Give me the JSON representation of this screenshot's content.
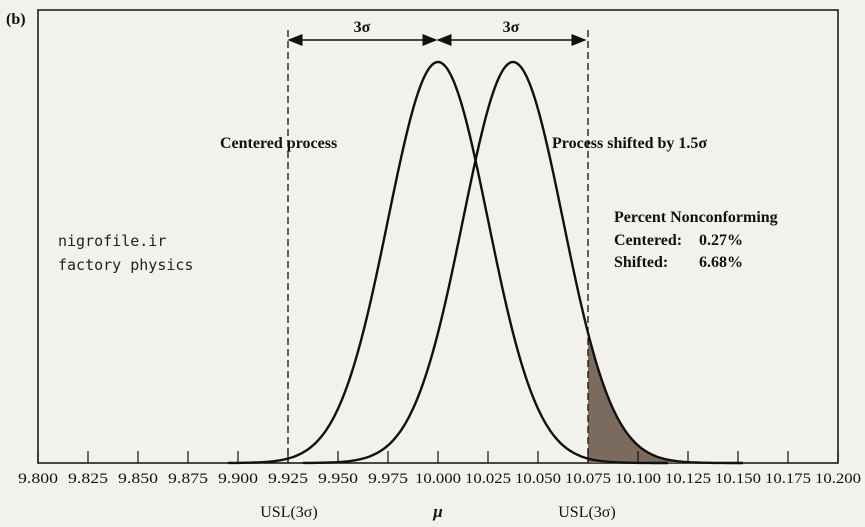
{
  "panel_label": "(b)",
  "watermark": [
    "nigrofile.ir",
    "factory physics"
  ],
  "chart_data": {
    "type": "line",
    "title": "",
    "xlim": [
      9.8,
      10.2
    ],
    "x_ticks": [
      "9.800",
      "9.825",
      "9.850",
      "9.875",
      "9.900",
      "9.925",
      "9.950",
      "9.975",
      "10.000",
      "10.025",
      "10.050",
      "10.075",
      "10.100",
      "10.125",
      "10.150",
      "10.175",
      "10.200"
    ],
    "series": [
      {
        "name": "Centered process",
        "distribution": "normal",
        "mean": 10.0,
        "sigma": 0.025
      },
      {
        "name": "Process shifted by 1.5σ",
        "distribution": "normal",
        "mean": 10.0375,
        "sigma": 0.025
      }
    ],
    "spec_limits": [
      9.925,
      10.075
    ],
    "shaded_region": {
      "series": "Process shifted by 1.5σ",
      "from": 10.075,
      "to": 10.2,
      "color": "#7b6b5f"
    },
    "annotations": {
      "span_left": "3σ",
      "span_right": "3σ",
      "centered_label": "Centered process",
      "shifted_label": "Process shifted by 1.5σ",
      "below_left": "USL(3σ)",
      "below_mid": "μ",
      "below_right": "USL(3σ)"
    },
    "nonconforming": {
      "title": "Percent Nonconforming",
      "rows": [
        {
          "label": "Centered:",
          "value": "0.27%"
        },
        {
          "label": "Shifted:",
          "value": "6.68%"
        }
      ]
    }
  }
}
